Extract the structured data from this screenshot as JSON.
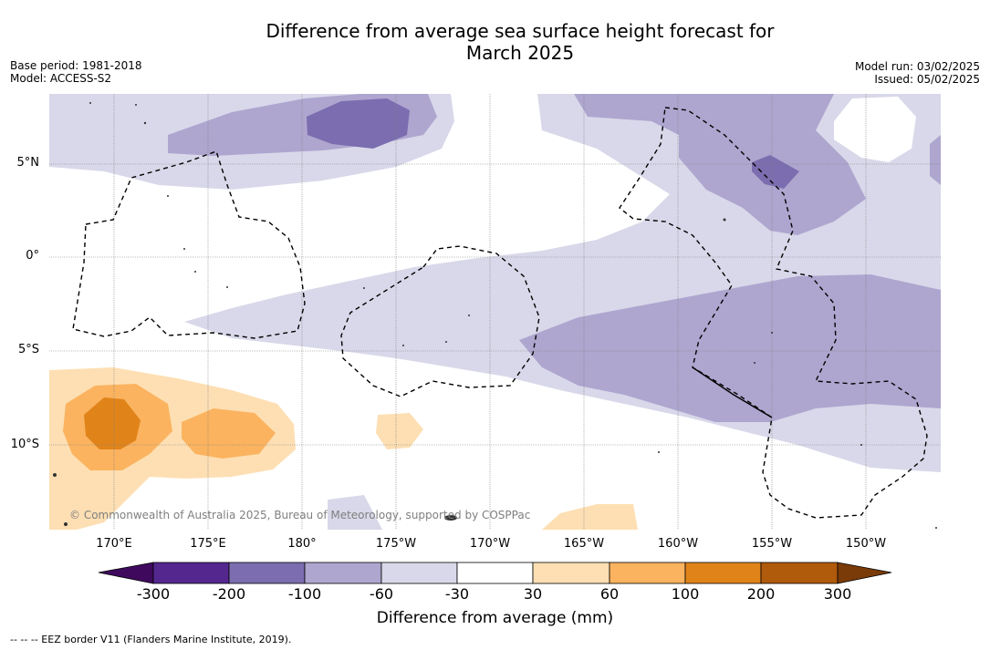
{
  "title_line1": "Difference from average sea surface height forecast for",
  "title_line2": "March 2025",
  "base_period": "Base period: 1981-2018",
  "model": "Model: ACCESS-S2",
  "model_run": "Model run: 03/02/2025",
  "issued": "Issued: 05/02/2025",
  "lat_labels": [
    "5°N",
    "0°",
    "5°S",
    "10°S"
  ],
  "lon_labels": [
    "170°E",
    "175°E",
    "180°",
    "175°W",
    "170°W",
    "165°W",
    "160°W",
    "155°W",
    "150°W"
  ],
  "copyright": "© Commonwealth of Australia 2025, Bureau of Meteorology, supported by COSPPac",
  "colorbar": {
    "ticks": [
      "-300",
      "-200",
      "-100",
      "-60",
      "-30",
      "30",
      "60",
      "100",
      "200",
      "300"
    ],
    "label": "Difference from average (mm)",
    "colors": [
      "#3f0a5e",
      "#54278f",
      "#7b6daf",
      "#aea6cf",
      "#d8d8ea",
      "#ffffff",
      "#fddfb3",
      "#fbb35f",
      "#e0841a",
      "#b05a0c",
      "#7a3b08"
    ]
  },
  "legend": "-- -- -- EEZ border V11 (Flanders Marine Institute, 2019)."
}
